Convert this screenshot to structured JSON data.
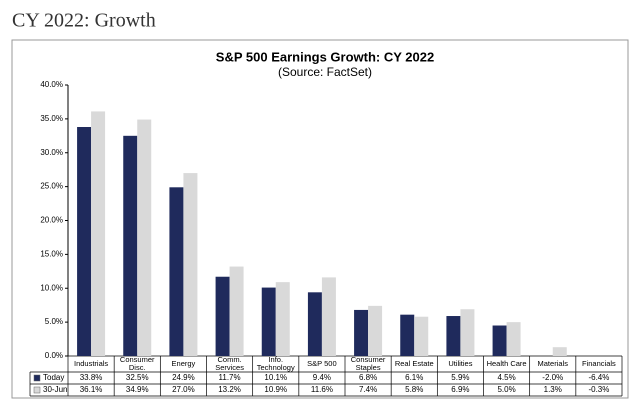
{
  "heading": "CY 2022: Growth",
  "chart_data": {
    "type": "bar",
    "title": "S&P 500 Earnings Growth: CY 2022",
    "subtitle": "(Source: FactSet)",
    "categories": [
      "Industrials",
      "Consumer Disc.",
      "Energy",
      "Comm. Services",
      "Info. Technology",
      "S&P 500",
      "Consumer Staples",
      "Real Estate",
      "Utilities",
      "Health Care",
      "Materials",
      "Financials"
    ],
    "series": [
      {
        "name": "Today",
        "color": "#1f2a5c",
        "values": [
          33.8,
          32.5,
          24.9,
          11.7,
          10.1,
          9.4,
          6.8,
          6.1,
          5.9,
          4.5,
          -2.0,
          -6.4
        ],
        "value_labels": [
          "33.8%",
          "32.5%",
          "24.9%",
          "11.7%",
          "10.1%",
          "9.4%",
          "6.8%",
          "6.1%",
          "5.9%",
          "4.5%",
          "-2.0%",
          "-6.4%"
        ]
      },
      {
        "name": "30-Jun",
        "color": "#d9d9d9",
        "values": [
          36.1,
          34.9,
          27.0,
          13.2,
          10.9,
          11.6,
          7.4,
          5.8,
          6.9,
          5.0,
          1.3,
          -0.3
        ],
        "value_labels": [
          "36.1%",
          "34.9%",
          "27.0%",
          "13.2%",
          "10.9%",
          "11.6%",
          "7.4%",
          "5.8%",
          "6.9%",
          "5.0%",
          "1.3%",
          "-0.3%"
        ]
      }
    ],
    "ylim": [
      0,
      40
    ],
    "yticks": [
      {
        "value": 0,
        "label": "0.0%"
      },
      {
        "value": 5,
        "label": "5.0%"
      },
      {
        "value": 10,
        "label": "10.0%"
      },
      {
        "value": 15,
        "label": "15.0%"
      },
      {
        "value": 20,
        "label": "20.0%"
      },
      {
        "value": 25,
        "label": "25.0%"
      },
      {
        "value": 30,
        "label": "30.0%"
      },
      {
        "value": 35,
        "label": "35.0%"
      },
      {
        "value": 40,
        "label": "40.0%"
      }
    ],
    "grid": false
  }
}
